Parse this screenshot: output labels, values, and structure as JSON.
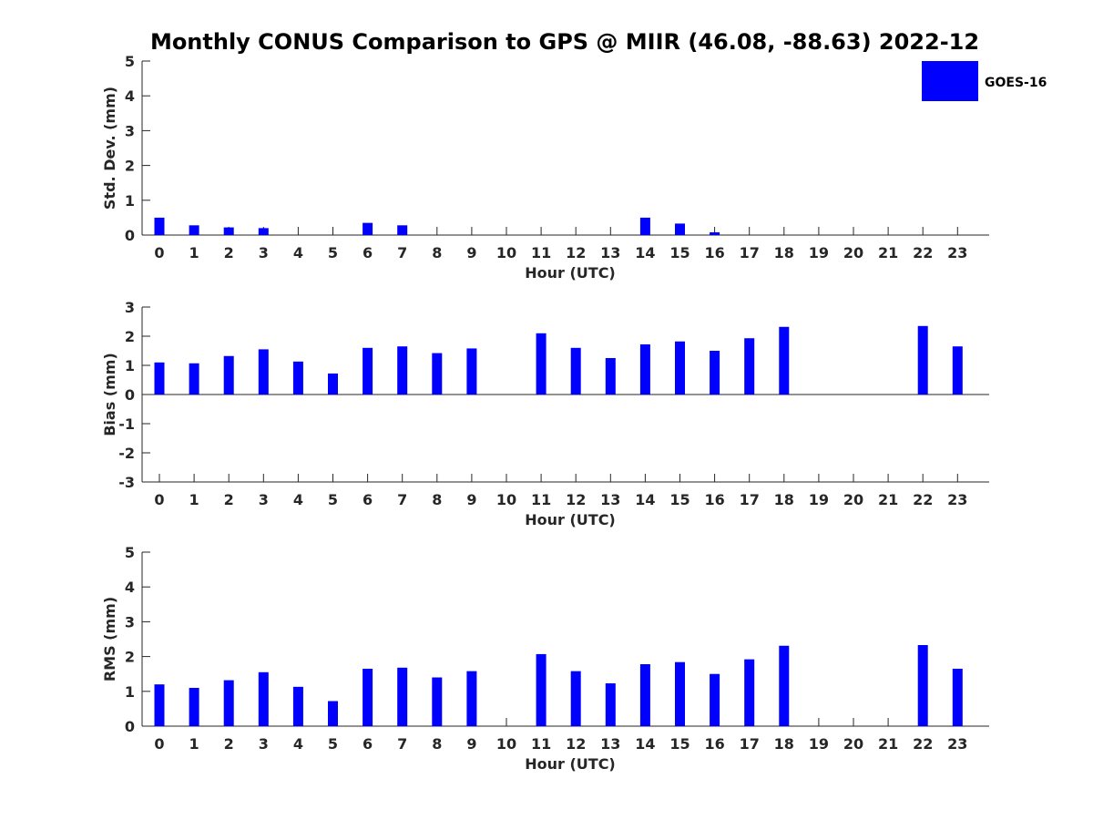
{
  "title": "Monthly CONUS Comparison to GPS @ MIIR (46.08, -88.63) 2022-12",
  "legend": {
    "label": "GOES-16",
    "color": "#0000ff"
  },
  "chart_data": [
    {
      "type": "bar",
      "series_name": "GOES-16",
      "categories": [
        0,
        1,
        2,
        3,
        4,
        5,
        6,
        7,
        8,
        9,
        10,
        11,
        12,
        13,
        14,
        15,
        16,
        17,
        18,
        19,
        20,
        21,
        22,
        23
      ],
      "values": [
        0.5,
        0.28,
        0.22,
        0.2,
        null,
        null,
        0.35,
        0.28,
        null,
        null,
        null,
        null,
        null,
        null,
        0.5,
        0.33,
        0.08,
        null,
        null,
        null,
        null,
        null,
        null,
        null
      ],
      "xlabel": "Hour (UTC)",
      "ylabel": "Std. Dev. (mm)",
      "ylim": [
        0,
        5
      ],
      "yticks": [
        0,
        1,
        2,
        3,
        4,
        5
      ]
    },
    {
      "type": "bar",
      "series_name": "GOES-16",
      "categories": [
        0,
        1,
        2,
        3,
        4,
        5,
        6,
        7,
        8,
        9,
        10,
        11,
        12,
        13,
        14,
        15,
        16,
        17,
        18,
        19,
        20,
        21,
        22,
        23
      ],
      "values": [
        1.1,
        1.07,
        1.32,
        1.55,
        1.13,
        0.72,
        1.6,
        1.65,
        1.42,
        1.58,
        null,
        2.1,
        1.6,
        1.25,
        1.72,
        1.82,
        1.5,
        1.93,
        2.32,
        null,
        null,
        null,
        2.35,
        1.65
      ],
      "xlabel": "Hour (UTC)",
      "ylabel": "Bias (mm)",
      "ylim": [
        -3,
        3
      ],
      "yticks": [
        -3,
        -2,
        -1,
        0,
        1,
        2,
        3
      ]
    },
    {
      "type": "bar",
      "series_name": "GOES-16",
      "categories": [
        0,
        1,
        2,
        3,
        4,
        5,
        6,
        7,
        8,
        9,
        10,
        11,
        12,
        13,
        14,
        15,
        16,
        17,
        18,
        19,
        20,
        21,
        22,
        23
      ],
      "values": [
        1.2,
        1.1,
        1.32,
        1.55,
        1.13,
        0.72,
        1.65,
        1.68,
        1.4,
        1.58,
        null,
        2.07,
        1.58,
        1.23,
        1.78,
        1.84,
        1.5,
        1.92,
        2.31,
        null,
        null,
        null,
        2.33,
        1.65
      ],
      "xlabel": "Hour (UTC)",
      "ylabel": "RMS (mm)",
      "ylim": [
        0,
        5
      ],
      "yticks": [
        0,
        1,
        2,
        3,
        4,
        5
      ]
    }
  ]
}
